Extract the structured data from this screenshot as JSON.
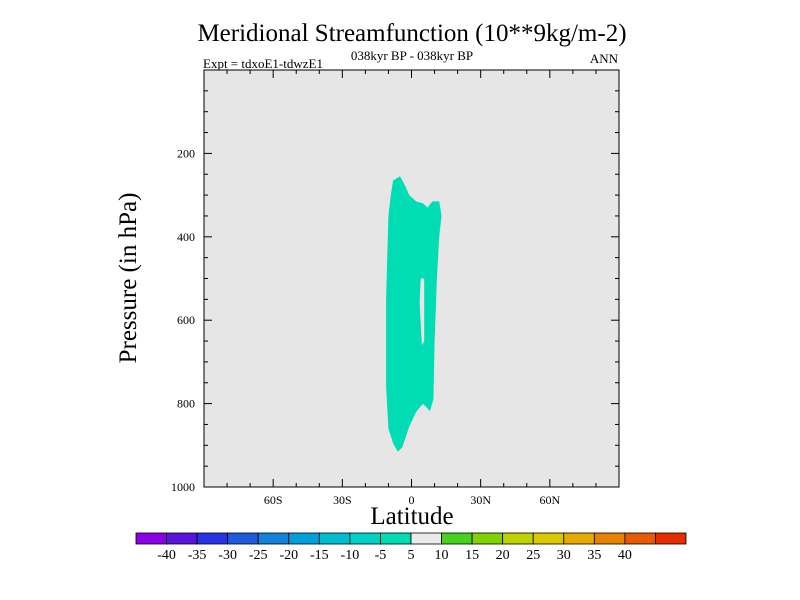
{
  "chart_data": {
    "type": "contour",
    "title": "Meridional Streamfunction (10**9kg/m-2)",
    "subtitle_left": "Expt = tdxoE1-tdwzE1",
    "subtitle_center": "038kyr BP - 038kyr BP",
    "subtitle_right": "ANN",
    "xlabel": "Latitude",
    "ylabel": "Pressure (in hPa)",
    "xlim": [
      -90,
      90
    ],
    "ylim": [
      1000,
      0
    ],
    "x_ticks": [
      {
        "value": -60,
        "label": "60S"
      },
      {
        "value": -30,
        "label": "30S"
      },
      {
        "value": 0,
        "label": "0"
      },
      {
        "value": 30,
        "label": "30N"
      },
      {
        "value": 60,
        "label": "60N"
      }
    ],
    "y_ticks": [
      {
        "value": 200,
        "label": "200"
      },
      {
        "value": 400,
        "label": "400"
      },
      {
        "value": 600,
        "label": "600"
      },
      {
        "value": 800,
        "label": "800"
      },
      {
        "value": 1000,
        "label": "1000"
      }
    ],
    "background_color": "#e6e6e6",
    "contour_regions": [
      {
        "name": "streamfunction -10 to -5",
        "color": "#00dcb4",
        "outline": [
          [
            -8,
            265
          ],
          [
            -5,
            255
          ],
          [
            -3,
            275
          ],
          [
            -1,
            300
          ],
          [
            2,
            315
          ],
          [
            5,
            320
          ],
          [
            7,
            330
          ],
          [
            9,
            315
          ],
          [
            12,
            315
          ],
          [
            13,
            350
          ],
          [
            12,
            400
          ],
          [
            11,
            500
          ],
          [
            10,
            650
          ],
          [
            9.5,
            790
          ],
          [
            8,
            818
          ],
          [
            5,
            800
          ],
          [
            2,
            820
          ],
          [
            -1,
            855
          ],
          [
            -4,
            905
          ],
          [
            -6,
            915
          ],
          [
            -8,
            895
          ],
          [
            -10,
            860
          ],
          [
            -11,
            760
          ],
          [
            -11,
            550
          ],
          [
            -10,
            350
          ],
          [
            -9,
            300
          ]
        ],
        "hole": [
          [
            4,
            500
          ],
          [
            5.5,
            500
          ],
          [
            5.5,
            650
          ],
          [
            4.5,
            660
          ],
          [
            3.5,
            560
          ]
        ]
      }
    ],
    "colorbar": {
      "labels": [
        "-40",
        "-35",
        "-30",
        "-25",
        "-20",
        "-15",
        "-10",
        "-5",
        "5",
        "10",
        "15",
        "20",
        "25",
        "30",
        "35",
        "40"
      ],
      "colors": [
        "#8c00e6",
        "#5a14dc",
        "#2832e6",
        "#1e5adc",
        "#1482dc",
        "#00a0dc",
        "#00bed2",
        "#00d2c8",
        "#00dcb4",
        "#ebebeb",
        "#46d21e",
        "#82d200",
        "#bed200",
        "#dcc800",
        "#e6aa00",
        "#e68200",
        "#e65a00",
        "#e62d00"
      ]
    }
  }
}
